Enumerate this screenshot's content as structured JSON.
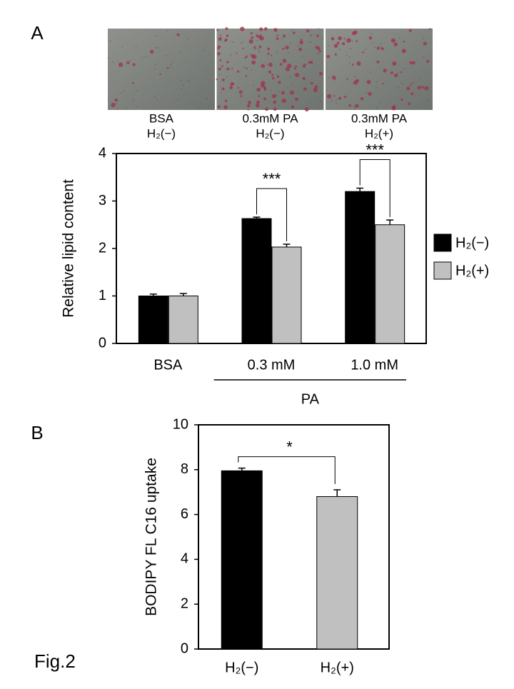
{
  "panel_labels": [
    "A",
    "B"
  ],
  "figure_label": "Fig.2",
  "micrographs": [
    {
      "caption": [
        "BSA",
        "H₂(−)"
      ]
    },
    {
      "caption": [
        "0.3mM PA",
        "H₂(−)"
      ]
    },
    {
      "caption": [
        "0.3mM PA",
        "H₂(+)"
      ]
    }
  ],
  "chart_data": [
    {
      "type": "bar",
      "y_label": "Relative lipid content",
      "categories": [
        "BSA",
        "0.3 mM",
        "1.0 mM"
      ],
      "group_label": {
        "label": "PA",
        "categories": [
          "0.3 mM",
          "1.0 mM"
        ]
      },
      "series": [
        {
          "name": "H₂(−)",
          "color": "#000000",
          "values": [
            1.0,
            2.63,
            3.2
          ],
          "errors": [
            0.04,
            0.03,
            0.07
          ]
        },
        {
          "name": "H₂(+)",
          "color": "#c0c0c0",
          "values": [
            1.0,
            2.03,
            2.5
          ],
          "errors": [
            0.05,
            0.06,
            0.1
          ]
        }
      ],
      "significance": [
        {
          "category": "0.3 mM",
          "label": "***"
        },
        {
          "category": "1.0 mM",
          "label": "***"
        }
      ],
      "ylim": [
        0,
        4
      ],
      "yticks": [
        0,
        1,
        2,
        3,
        4
      ],
      "legend": "right"
    },
    {
      "type": "bar",
      "y_label": "BODIPY FL C16 uptake",
      "categories": [
        "H₂(−)",
        "H₂(+)"
      ],
      "values": [
        7.95,
        6.8
      ],
      "errors": [
        0.12,
        0.3
      ],
      "colors": [
        "#000000",
        "#c0c0c0"
      ],
      "significance": {
        "label": "*"
      },
      "ylim": [
        0,
        10
      ],
      "yticks": [
        0,
        2,
        4,
        6,
        8,
        10
      ]
    }
  ]
}
